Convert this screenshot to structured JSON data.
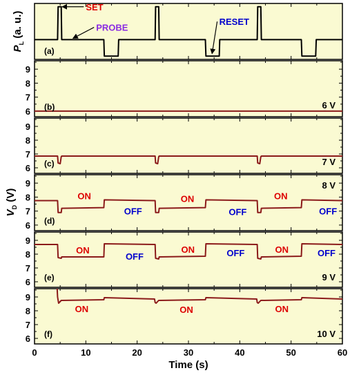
{
  "chart_data": {
    "type": "line",
    "xlabel": "Time (s)",
    "xlim": [
      0,
      60
    ],
    "x_ticks": [
      "0",
      "10",
      "20",
      "30",
      "40",
      "50",
      "60"
    ],
    "x_tick_values": [
      0,
      10,
      20,
      30,
      40,
      50,
      60
    ],
    "colors": {
      "background": "#fafad2",
      "probe_trace": "#000000",
      "vd_trace": "#8b1a1a",
      "on_label": "#dd0000",
      "off_label": "#0000cc",
      "set_label": "#dd0000",
      "probe_label": "#8a2be2",
      "reset_label": "#0000cc"
    },
    "top_panel": {
      "id": "a",
      "panel_label": "(a)",
      "ylabel_main": "P",
      "ylabel_sub": "L",
      "ylabel_suffix": " (a. u.)",
      "ylim": [
        -1.2,
        2.2
      ],
      "series": {
        "name": "",
        "x": [
          0,
          4.5,
          4.6,
          5.2,
          5.3,
          13.5,
          13.6,
          16.3,
          16.4,
          23.5,
          23.6,
          24.2,
          24.3,
          33.3,
          33.4,
          36.0,
          36.1,
          43.4,
          43.5,
          44.1,
          44.2,
          52.0,
          52.1,
          54.8,
          54.9,
          60
        ],
        "y": [
          0,
          0,
          2,
          2,
          0,
          0,
          -1,
          -1,
          0,
          0,
          2,
          2,
          0,
          0,
          -1,
          -1,
          0,
          0,
          2,
          2,
          0,
          0,
          -1,
          -1,
          0,
          0
        ]
      },
      "annotations": [
        {
          "text": "SET",
          "x": 10.0,
          "y": 2.0,
          "arrow_to_x": 5.4,
          "arrow_to_y": 2.0,
          "color_key": "set_label"
        },
        {
          "text": "PROBE",
          "x": 12.0,
          "y": 0.75,
          "arrow_to_x": 7.5,
          "arrow_to_y": 0.08,
          "color_key": "probe_label"
        },
        {
          "text": "RESET",
          "x": 36.0,
          "y": 1.1,
          "arrow_to_x": 34.6,
          "arrow_to_y": -0.85,
          "color_key": "reset_label"
        }
      ]
    },
    "vd_ylabel_main": "V",
    "vd_ylabel_sub": "D",
    "vd_ylabel_suffix": " (V)",
    "vd_panels": [
      {
        "id": "b",
        "panel_label": "(b)",
        "voltage": "6 V",
        "ylim": [
          5.6,
          9.6
        ],
        "y_ticks": [
          "6",
          "7",
          "8",
          "9"
        ],
        "y_tick_values": [
          6,
          7,
          8,
          9
        ],
        "series": {
          "name": "",
          "x": [
            0,
            60
          ],
          "y": [
            6.0,
            6.0
          ]
        },
        "state_labels": []
      },
      {
        "id": "c",
        "panel_label": "(c)",
        "voltage": "7 V",
        "ylim": [
          5.6,
          9.6
        ],
        "y_ticks": [
          "6",
          "7",
          "8",
          "9"
        ],
        "y_tick_values": [
          6,
          7,
          8,
          9
        ],
        "series": {
          "name": "",
          "x": [
            0,
            4.5,
            4.6,
            5.0,
            5.2,
            5.3,
            23.5,
            23.6,
            24.0,
            24.2,
            24.3,
            43.4,
            43.5,
            43.9,
            44.1,
            44.2,
            60
          ],
          "y": [
            6.85,
            6.85,
            6.35,
            6.3,
            6.8,
            6.85,
            6.85,
            6.35,
            6.3,
            6.8,
            6.85,
            6.85,
            6.35,
            6.3,
            6.8,
            6.85,
            6.85
          ]
        },
        "state_labels": []
      },
      {
        "id": "d",
        "panel_label": "(d)",
        "voltage": "8 V",
        "ylim": [
          5.6,
          9.6
        ],
        "y_ticks": [
          "6",
          "7",
          "8",
          "9"
        ],
        "y_tick_values": [
          6,
          7,
          8,
          9
        ],
        "series": {
          "name": "",
          "x": [
            0,
            4.5,
            4.6,
            5.2,
            5.3,
            13.5,
            13.6,
            23.5,
            23.6,
            24.2,
            24.3,
            33.3,
            33.4,
            43.4,
            43.5,
            44.1,
            44.2,
            52.0,
            52.1,
            60
          ],
          "y": [
            7.75,
            7.75,
            6.9,
            6.9,
            7.2,
            7.25,
            7.8,
            7.75,
            6.9,
            6.9,
            7.2,
            7.25,
            7.8,
            7.75,
            6.9,
            6.9,
            7.2,
            7.25,
            7.8,
            7.75
          ]
        },
        "state_labels": [
          {
            "text": "ON",
            "x": 9.7,
            "y": 8.1,
            "color_key": "on_label"
          },
          {
            "text": "OFF",
            "x": 19.2,
            "y": 7.0,
            "color_key": "off_label"
          },
          {
            "text": "ON",
            "x": 29.8,
            "y": 7.9,
            "color_key": "on_label"
          },
          {
            "text": "OFF",
            "x": 39.6,
            "y": 6.95,
            "color_key": "off_label"
          },
          {
            "text": "ON",
            "x": 48.0,
            "y": 8.1,
            "color_key": "on_label"
          },
          {
            "text": "OFF",
            "x": 57.2,
            "y": 7.0,
            "color_key": "off_label"
          }
        ]
      },
      {
        "id": "e",
        "panel_label": "(e)",
        "voltage": "9 V",
        "ylim": [
          5.6,
          9.6
        ],
        "y_ticks": [
          "6",
          "7",
          "8",
          "9"
        ],
        "y_tick_values": [
          6,
          7,
          8,
          9
        ],
        "series": {
          "name": "",
          "x": [
            0,
            4.5,
            4.6,
            5.2,
            5.3,
            13.5,
            13.6,
            23.5,
            23.6,
            24.2,
            24.3,
            33.3,
            33.4,
            43.4,
            43.5,
            44.1,
            44.2,
            52.0,
            52.1,
            60
          ],
          "y": [
            8.7,
            8.7,
            7.75,
            7.7,
            7.8,
            7.8,
            8.75,
            8.7,
            7.7,
            7.65,
            7.8,
            7.85,
            8.75,
            8.7,
            7.7,
            7.65,
            7.8,
            7.85,
            8.75,
            8.7
          ]
        },
        "state_labels": [
          {
            "text": "ON",
            "x": 9.4,
            "y": 8.3,
            "color_key": "on_label"
          },
          {
            "text": "OFF",
            "x": 19.5,
            "y": 7.85,
            "color_key": "off_label"
          },
          {
            "text": "ON",
            "x": 29.9,
            "y": 8.35,
            "color_key": "on_label"
          },
          {
            "text": "OFF",
            "x": 39.2,
            "y": 8.1,
            "color_key": "off_label"
          },
          {
            "text": "ON",
            "x": 48.2,
            "y": 8.35,
            "color_key": "on_label"
          },
          {
            "text": "OFF",
            "x": 56.9,
            "y": 8.1,
            "color_key": "off_label"
          }
        ]
      },
      {
        "id": "f",
        "panel_label": "(f)",
        "voltage": "10 V",
        "ylim": [
          5.6,
          9.6
        ],
        "y_ticks": [
          "6",
          "7",
          "8",
          "9"
        ],
        "y_tick_values": [
          6,
          7,
          8,
          9
        ],
        "series": {
          "name": "",
          "x": [
            0,
            4.4,
            4.5,
            4.7,
            5.2,
            13.5,
            13.6,
            23.4,
            23.5,
            23.7,
            24.2,
            33.3,
            33.4,
            43.3,
            43.4,
            43.6,
            44.1,
            52.0,
            52.1,
            60
          ],
          "y": [
            9.7,
            9.7,
            9.0,
            8.55,
            8.75,
            8.8,
            8.95,
            8.85,
            8.6,
            8.55,
            8.75,
            8.8,
            8.95,
            8.85,
            8.6,
            8.55,
            8.75,
            8.8,
            8.95,
            8.85
          ]
        },
        "state_labels": [
          {
            "text": "ON",
            "x": 9.2,
            "y": 8.15,
            "color_key": "on_label"
          },
          {
            "text": "ON",
            "x": 29.6,
            "y": 8.1,
            "color_key": "on_label"
          },
          {
            "text": "ON",
            "x": 48.2,
            "y": 8.15,
            "color_key": "on_label"
          }
        ]
      }
    ]
  }
}
